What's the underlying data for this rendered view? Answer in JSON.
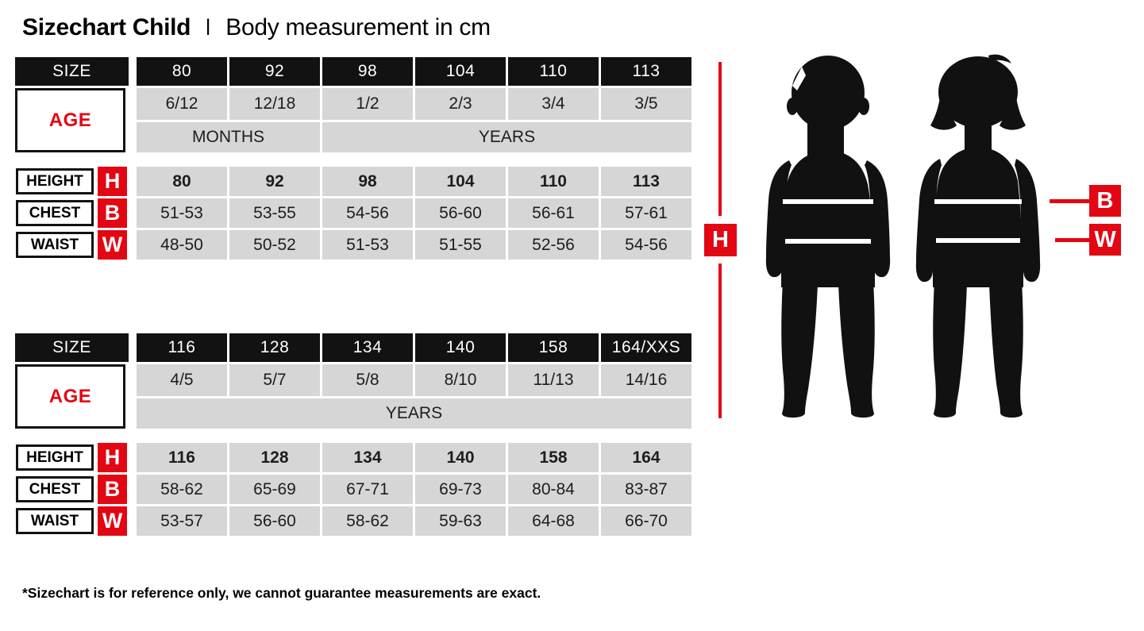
{
  "header": {
    "title_bold": "Sizechart Child",
    "separator": "I",
    "subtitle": "Body measurement in cm"
  },
  "colors": {
    "red": "#e30613",
    "black": "#121212",
    "cell_gray": "#d6d6d6"
  },
  "tables": [
    {
      "size_label": "SIZE",
      "age_label": "AGE",
      "sizes": [
        "80",
        "92",
        "98",
        "104",
        "110",
        "113"
      ],
      "ages": [
        "6/12",
        "12/18",
        "1/2",
        "2/3",
        "3/4",
        "3/5"
      ],
      "units": [
        {
          "label": "MONTHS",
          "span": 2
        },
        {
          "label": "YEARS",
          "span": 4
        }
      ],
      "rows": [
        {
          "label": "HEIGHT",
          "letter": "H",
          "bold": true,
          "values": [
            "80",
            "92",
            "98",
            "104",
            "110",
            "113"
          ]
        },
        {
          "label": "CHEST",
          "letter": "B",
          "bold": false,
          "values": [
            "51-53",
            "53-55",
            "54-56",
            "56-60",
            "56-61",
            "57-61"
          ]
        },
        {
          "label": "WAIST",
          "letter": "W",
          "bold": false,
          "values": [
            "48-50",
            "50-52",
            "51-53",
            "51-55",
            "52-56",
            "54-56"
          ]
        }
      ]
    },
    {
      "size_label": "SIZE",
      "age_label": "AGE",
      "sizes": [
        "116",
        "128",
        "134",
        "140",
        "158",
        "164/XXS"
      ],
      "ages": [
        "4/5",
        "5/7",
        "5/8",
        "8/10",
        "11/13",
        "14/16"
      ],
      "units": [
        {
          "label": "YEARS",
          "span": 6
        }
      ],
      "rows": [
        {
          "label": "HEIGHT",
          "letter": "H",
          "bold": true,
          "values": [
            "116",
            "128",
            "134",
            "140",
            "158",
            "164"
          ]
        },
        {
          "label": "CHEST",
          "letter": "B",
          "bold": false,
          "values": [
            "58-62",
            "65-69",
            "67-71",
            "69-73",
            "80-84",
            "83-87"
          ]
        },
        {
          "label": "WAIST",
          "letter": "W",
          "bold": false,
          "values": [
            "53-57",
            "56-60",
            "58-62",
            "59-63",
            "64-68",
            "66-70"
          ]
        }
      ]
    }
  ],
  "figure": {
    "height_label": "H",
    "chest_label": "B",
    "waist_label": "W"
  },
  "footnote": "*Sizechart is for reference only, we cannot guarantee measurements are exact."
}
